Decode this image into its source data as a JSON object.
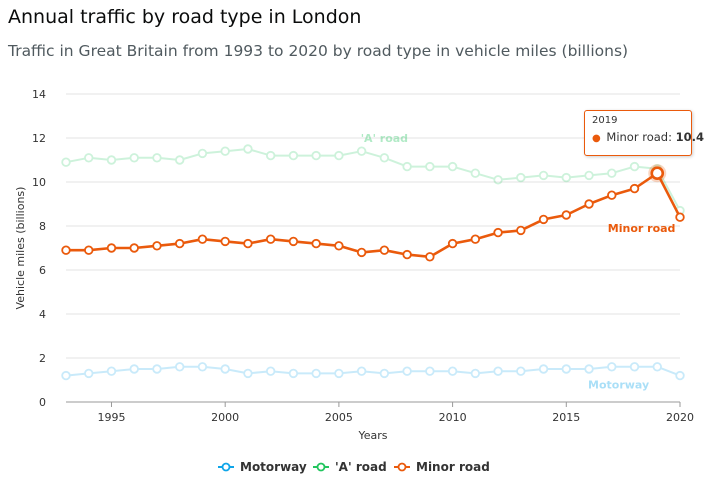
{
  "header": {
    "title": "Annual traffic by road type in London",
    "subtitle": "Traffic in Great Britain from 1993 to 2020 by road type in vehicle miles (billions)"
  },
  "tooltip": {
    "year": "2019",
    "series": "Minor road",
    "value": "10.4",
    "color": "#ea5a0c"
  },
  "legend": [
    {
      "label": "Motorway",
      "color": "#0ea5e9"
    },
    {
      "label": "'A' road",
      "color": "#22c55e"
    },
    {
      "label": "Minor road",
      "color": "#ea5a0c"
    }
  ],
  "chart_data": {
    "type": "line",
    "xlabel": "Years",
    "ylabel": "Vehicle miles (billions)",
    "xlim": [
      1993,
      2020
    ],
    "ylim": [
      0,
      14
    ],
    "xticks": [
      1995,
      2000,
      2005,
      2010,
      2015,
      2020
    ],
    "yticks": [
      0,
      2,
      4,
      6,
      8,
      10,
      12,
      14
    ],
    "grid": "horizontal",
    "legend_position": "bottom",
    "x": [
      1993,
      1994,
      1995,
      1996,
      1997,
      1998,
      1999,
      2000,
      2001,
      2002,
      2003,
      2004,
      2005,
      2006,
      2007,
      2008,
      2009,
      2010,
      2011,
      2012,
      2013,
      2014,
      2015,
      2016,
      2017,
      2018,
      2019,
      2020
    ],
    "series": [
      {
        "name": "Motorway",
        "color": "#0ea5e9",
        "faded": true,
        "values": [
          1.2,
          1.3,
          1.4,
          1.5,
          1.5,
          1.6,
          1.6,
          1.5,
          1.3,
          1.4,
          1.3,
          1.3,
          1.3,
          1.4,
          1.3,
          1.4,
          1.4,
          1.4,
          1.3,
          1.4,
          1.4,
          1.5,
          1.5,
          1.5,
          1.6,
          1.6,
          1.6,
          1.2
        ]
      },
      {
        "name": "'A' road",
        "color": "#22c55e",
        "faded": true,
        "values": [
          10.9,
          11.1,
          11.0,
          11.1,
          11.1,
          11.0,
          11.3,
          11.4,
          11.5,
          11.2,
          11.2,
          11.2,
          11.2,
          11.4,
          11.1,
          10.7,
          10.7,
          10.7,
          10.4,
          10.1,
          10.2,
          10.3,
          10.2,
          10.3,
          10.4,
          10.7,
          10.6,
          8.7
        ]
      },
      {
        "name": "Minor road",
        "color": "#ea5a0c",
        "faded": false,
        "values": [
          6.9,
          6.9,
          7.0,
          7.0,
          7.1,
          7.2,
          7.4,
          7.3,
          7.2,
          7.4,
          7.3,
          7.2,
          7.1,
          6.8,
          6.9,
          6.7,
          6.6,
          7.2,
          7.4,
          7.7,
          7.8,
          8.3,
          8.5,
          9.0,
          9.4,
          9.7,
          10.4,
          8.4
        ]
      }
    ],
    "annotations": [
      {
        "text": "'A' road",
        "x": 2007,
        "y": 12.0
      },
      {
        "text": "Minor road",
        "x": 2019.8,
        "y": 7.9
      },
      {
        "text": "Motorway",
        "x": 2017.3,
        "y": 0.8
      }
    ],
    "highlight": {
      "series": "Minor road",
      "x": 2019,
      "y": 10.4
    }
  }
}
